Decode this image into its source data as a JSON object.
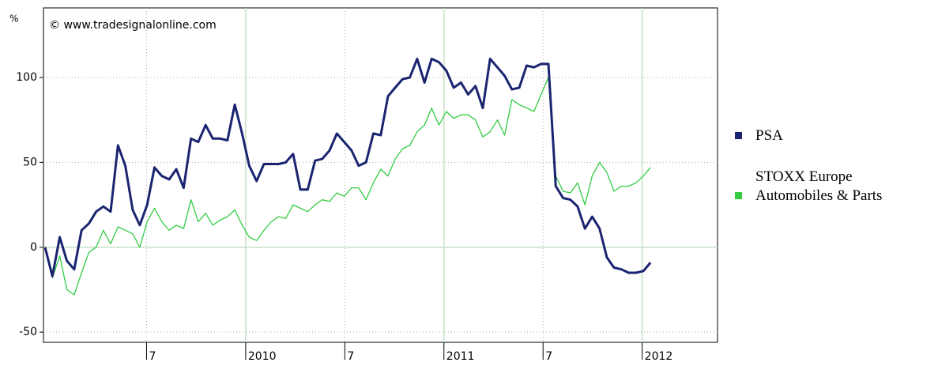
{
  "chart_data": {
    "type": "line",
    "unit_label": "%",
    "watermark": "© www.tradesignalonline.com",
    "x": [
      2008.988,
      2009.025,
      2009.062,
      2009.098,
      2009.135,
      2009.172,
      2009.209,
      2009.246,
      2009.282,
      2009.319,
      2009.356,
      2009.393,
      2009.43,
      2009.466,
      2009.503,
      2009.54,
      2009.577,
      2009.614,
      2009.65,
      2009.687,
      2009.724,
      2009.761,
      2009.798,
      2009.834,
      2009.871,
      2009.908,
      2009.945,
      2009.982,
      2010.018,
      2010.055,
      2010.092,
      2010.129,
      2010.166,
      2010.202,
      2010.239,
      2010.276,
      2010.313,
      2010.35,
      2010.386,
      2010.423,
      2010.46,
      2010.497,
      2010.534,
      2010.57,
      2010.607,
      2010.644,
      2010.681,
      2010.718,
      2010.754,
      2010.791,
      2010.828,
      2010.865,
      2010.902,
      2010.938,
      2010.975,
      2011.012,
      2011.049,
      2011.086,
      2011.122,
      2011.159,
      2011.196,
      2011.233,
      2011.27,
      2011.306,
      2011.343,
      2011.38,
      2011.417,
      2011.454,
      2011.49,
      2011.527,
      2011.564,
      2011.601,
      2011.638,
      2011.674,
      2011.711,
      2011.748,
      2011.785,
      2011.822,
      2011.858,
      2011.895,
      2011.932,
      2011.969,
      2012.006,
      2012.042
    ],
    "series": [
      {
        "name": "PSA",
        "color": "#1a2470",
        "values": [
          0,
          -17,
          6,
          -8,
          -13,
          10,
          14,
          21,
          24,
          21,
          60,
          48,
          22,
          13,
          25,
          47,
          42,
          40,
          46,
          35,
          64,
          62,
          72,
          64,
          64,
          63,
          84,
          67,
          48,
          39,
          49,
          49,
          49,
          50,
          55,
          34,
          34,
          51,
          52,
          57,
          67,
          62,
          57,
          48,
          50,
          67,
          66,
          89,
          94,
          99,
          100,
          111,
          97,
          111,
          109,
          104,
          94,
          97,
          90,
          95,
          82,
          111,
          106,
          101,
          93,
          94,
          107,
          106,
          108,
          108,
          36,
          29,
          28,
          24,
          11,
          18,
          11,
          -6,
          -12,
          -13,
          -15,
          -15,
          -14,
          -9
        ]
      },
      {
        "name": "STOXX Europe Automobiles & Parts",
        "color": "#33cc44",
        "values": [
          0,
          -18,
          -5,
          -25,
          -28,
          -15,
          -3,
          0,
          10,
          2,
          12,
          10,
          8,
          0,
          15,
          23,
          15,
          10,
          13,
          11,
          28,
          15,
          20,
          13,
          16,
          18,
          22,
          13,
          6,
          4,
          10,
          15,
          18,
          17,
          25,
          23,
          21,
          25,
          28,
          27,
          32,
          30,
          35,
          35,
          28,
          38,
          46,
          42,
          52,
          58,
          60,
          68,
          72,
          82,
          72,
          80,
          76,
          78,
          78,
          75,
          65,
          68,
          75,
          66,
          87,
          84,
          82,
          80,
          90,
          100,
          42,
          33,
          32,
          38,
          25,
          42,
          50,
          44,
          33,
          36,
          36,
          38,
          42,
          47
        ]
      }
    ],
    "xlim": [
      2008.98,
      2012.38
    ],
    "xticks": [
      {
        "value": 2009.5,
        "label": "7"
      },
      2010,
      {
        "value": 2010.5,
        "label": "7"
      },
      2011,
      {
        "value": 2011.5,
        "label": "7"
      },
      2012
    ],
    "ylim": [
      -56,
      141
    ],
    "yticks": [
      -50,
      0,
      50,
      100
    ],
    "grid": true
  }
}
